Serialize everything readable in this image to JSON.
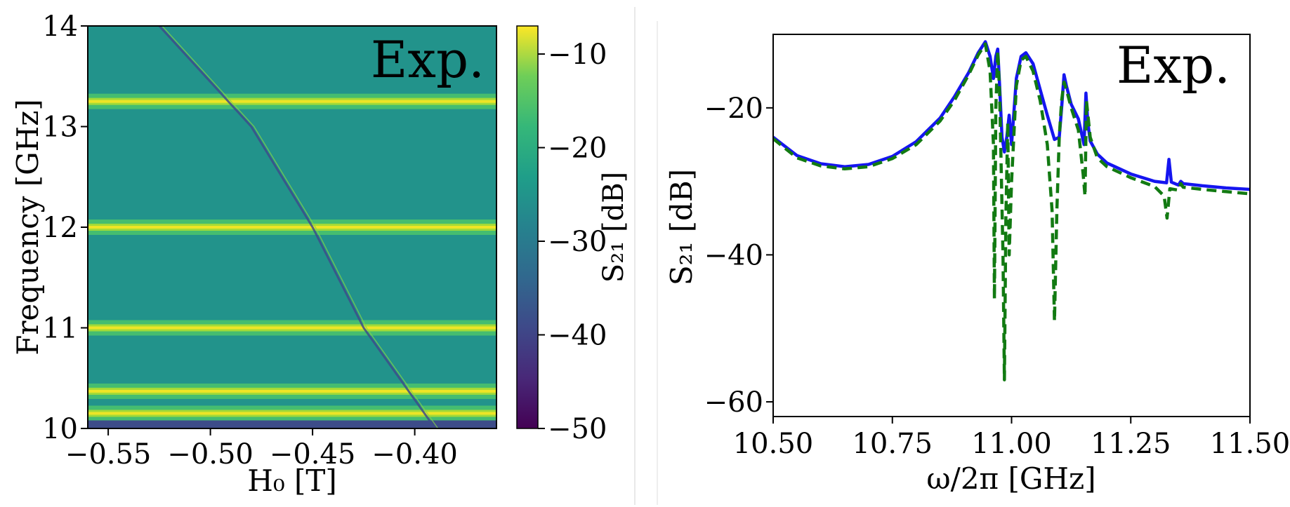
{
  "chart_data": [
    {
      "type": "heatmap",
      "panel_tag": "Exp.",
      "xlabel": "H₀ [T]",
      "ylabel": "Frequency [GHz]",
      "xlim": [
        -0.56,
        -0.36
      ],
      "ylim": [
        10,
        14
      ],
      "x_ticks": [
        -0.55,
        -0.5,
        -0.45,
        -0.4
      ],
      "x_tick_labels": [
        "−0.55",
        "−0.50",
        "−0.45",
        "−0.40"
      ],
      "y_ticks": [
        10,
        11,
        12,
        13,
        14
      ],
      "y_tick_labels": [
        "10",
        "11",
        "12",
        "13",
        "14"
      ],
      "colorbar": {
        "label": "S₂₁ [dB]",
        "range": [
          -50,
          -7
        ],
        "ticks": [
          -10,
          -20,
          -30,
          -40,
          -50
        ],
        "tick_labels": [
          "−10",
          "−20",
          "−30",
          "−40",
          "−50"
        ],
        "colormap": "viridis"
      },
      "background_level_db": -28,
      "cavity_modes_ghz": [
        13.25,
        12.0,
        11.0,
        10.37,
        10.15
      ],
      "magnon_line": [
        [
          -0.525,
          14.0
        ],
        [
          -0.48,
          13.0
        ],
        [
          -0.45,
          12.0
        ],
        [
          -0.425,
          11.0
        ],
        [
          -0.39,
          10.0
        ]
      ]
    },
    {
      "type": "line",
      "panel_tag": "Exp.",
      "xlabel": "ω/2π [GHz]",
      "ylabel": "S₂₁ [dB]",
      "xlim": [
        10.5,
        11.5
      ],
      "ylim": [
        -62,
        -10
      ],
      "x_ticks": [
        10.5,
        10.75,
        11.0,
        11.25,
        11.5
      ],
      "x_tick_labels": [
        "10.50",
        "10.75",
        "11.00",
        "11.25",
        "11.50"
      ],
      "y_ticks": [
        -20,
        -40,
        -60
      ],
      "y_tick_labels": [
        "−20",
        "−40",
        "−60"
      ],
      "series": [
        {
          "style": "solid",
          "color": "#1515f0",
          "x": [
            10.5,
            10.55,
            10.6,
            10.65,
            10.7,
            10.75,
            10.8,
            10.85,
            10.88,
            10.91,
            10.93,
            10.945,
            10.955,
            10.962,
            10.967,
            10.971,
            10.975,
            10.98,
            10.985,
            10.99,
            10.995,
            11.0,
            11.01,
            11.02,
            11.03,
            11.045,
            11.06,
            11.075,
            11.09,
            11.1,
            11.105,
            11.11,
            11.115,
            11.125,
            11.14,
            11.152,
            11.156,
            11.16,
            11.165,
            11.18,
            11.2,
            11.25,
            11.3,
            11.325,
            11.33,
            11.335,
            11.35,
            11.355,
            11.36,
            11.4,
            11.45,
            11.5
          ],
          "y": [
            -24,
            -26.5,
            -27.6,
            -28.0,
            -27.7,
            -26.6,
            -24.6,
            -21.4,
            -18.5,
            -15.2,
            -12.5,
            -11.0,
            -13.0,
            -16.0,
            -13.0,
            -12.0,
            -17.0,
            -24.0,
            -26.0,
            -24.0,
            -21.0,
            -25.0,
            -16.0,
            -13.0,
            -12.5,
            -14.0,
            -17.5,
            -21.0,
            -24.3,
            -24.0,
            -20.0,
            -15.5,
            -17.0,
            -19.5,
            -21.5,
            -25.0,
            -18.0,
            -22.0,
            -24.5,
            -26.3,
            -27.5,
            -29.0,
            -30.0,
            -30.2,
            -27.0,
            -30.1,
            -30.5,
            -30.0,
            -30.3,
            -30.6,
            -30.9,
            -31.1
          ]
        },
        {
          "style": "dashed",
          "color": "#127a12",
          "x": [
            10.5,
            10.55,
            10.6,
            10.65,
            10.7,
            10.75,
            10.8,
            10.85,
            10.88,
            10.91,
            10.93,
            10.945,
            10.955,
            10.962,
            10.964,
            10.967,
            10.971,
            10.975,
            10.982,
            10.985,
            10.988,
            10.992,
            10.995,
            11.0,
            11.01,
            11.02,
            11.03,
            11.045,
            11.06,
            11.075,
            11.085,
            11.09,
            11.095,
            11.1,
            11.105,
            11.11,
            11.115,
            11.125,
            11.14,
            11.15,
            11.154,
            11.157,
            11.165,
            11.18,
            11.2,
            11.25,
            11.3,
            11.32,
            11.326,
            11.332,
            11.35,
            11.355,
            11.36,
            11.4,
            11.45,
            11.5
          ],
          "y": [
            -24.2,
            -26.8,
            -27.9,
            -28.3,
            -28.0,
            -26.9,
            -25.0,
            -21.8,
            -19.0,
            -15.5,
            -12.8,
            -11.3,
            -15.0,
            -25.0,
            -46.0,
            -20.0,
            -12.3,
            -18.0,
            -40.0,
            -57.0,
            -35.0,
            -22.0,
            -40.0,
            -30.0,
            -17.0,
            -13.5,
            -13.0,
            -15.0,
            -19.0,
            -25.0,
            -34.0,
            -49.0,
            -34.0,
            -24.0,
            -19.0,
            -16.5,
            -17.5,
            -20.0,
            -23.0,
            -29.0,
            -32.0,
            -19.0,
            -24.0,
            -26.8,
            -28.0,
            -29.5,
            -30.7,
            -32.0,
            -35.0,
            -31.0,
            -31.2,
            -30.3,
            -30.8,
            -31.1,
            -31.4,
            -31.7
          ]
        }
      ]
    }
  ]
}
